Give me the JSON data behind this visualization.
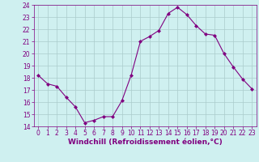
{
  "x": [
    0,
    1,
    2,
    3,
    4,
    5,
    6,
    7,
    8,
    9,
    10,
    11,
    12,
    13,
    14,
    15,
    16,
    17,
    18,
    19,
    20,
    21,
    22,
    23
  ],
  "y": [
    18.2,
    17.5,
    17.3,
    16.4,
    15.6,
    14.3,
    14.5,
    14.8,
    14.8,
    16.1,
    18.2,
    21.0,
    21.4,
    21.9,
    23.3,
    23.8,
    23.2,
    22.3,
    21.6,
    21.5,
    20.0,
    18.9,
    17.9,
    17.1
  ],
  "line_color": "#800080",
  "marker": "D",
  "marker_size": 2,
  "bg_color": "#cff0f0",
  "grid_color": "#aacccc",
  "xlabel": "Windchill (Refroidissement éolien,°C)",
  "xlabel_color": "#800080",
  "tick_color": "#800080",
  "ylim": [
    14,
    24
  ],
  "xlim": [
    -0.5,
    23.5
  ],
  "yticks": [
    14,
    15,
    16,
    17,
    18,
    19,
    20,
    21,
    22,
    23,
    24
  ],
  "xticks": [
    0,
    1,
    2,
    3,
    4,
    5,
    6,
    7,
    8,
    9,
    10,
    11,
    12,
    13,
    14,
    15,
    16,
    17,
    18,
    19,
    20,
    21,
    22,
    23
  ],
  "tick_fontsize": 5.5,
  "xlabel_fontsize": 6.5
}
